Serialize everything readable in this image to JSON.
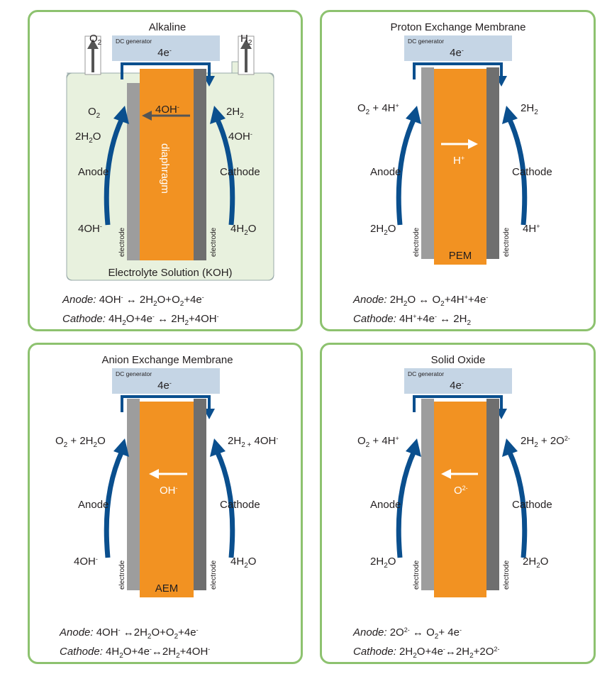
{
  "alkaline": {
    "title": "Alkaline",
    "dc": "DC generator",
    "electrons": "4e",
    "electrons_sup": "-",
    "o2_out": "O",
    "h2_out": "H",
    "anode_o2": "O",
    "anode_2h2o": "2H",
    "anode_label": "Anode",
    "anode_in": "4OH",
    "cathode_2h2": "2H",
    "cathode_4oh": "4OH",
    "cathode_label": "Cathode",
    "cathode_in": "4H",
    "ion": "4OH",
    "membrane": "diaphragm",
    "electrode": "electrode",
    "electrolyte": "Electrolyte Solution (KOH)",
    "eq_anode_label": "Anode:",
    "eq_cathode_label": "Cathode:"
  },
  "pem": {
    "title": "Proton Exchange Membrane",
    "dc": "DC generator",
    "electrons": "4e",
    "anode_top": "O",
    "anode_label": "Anode",
    "anode_in": "2H",
    "cathode_top": "2H",
    "cathode_label": "Cathode",
    "cathode_in": "4H",
    "ion": "H",
    "membrane": "PEM",
    "electrode": "electrode",
    "eq_anode_label": "Anode:",
    "eq_cathode_label": "Cathode:"
  },
  "aem": {
    "title": "Anion Exchange Membrane",
    "dc": "DC generator",
    "electrons": "4e",
    "anode_top": "O",
    "anode_label": "Anode",
    "anode_in": "4OH",
    "cathode_top": "2H",
    "cathode_label": "Cathode",
    "cathode_in": "4H",
    "ion": "OH",
    "membrane": "AEM",
    "electrode": "electrode",
    "eq_anode_label": "Anode:",
    "eq_cathode_label": "Cathode:"
  },
  "soec": {
    "title": "Solid Oxide",
    "dc": "DC generator",
    "electrons": "4e",
    "anode_top": "O",
    "anode_label": "Anode",
    "anode_in": "2H",
    "cathode_top": "2H",
    "cathode_label": "Cathode",
    "cathode_in": "2H",
    "ion": "O",
    "electrode": "electrode",
    "eq_anode_label": "Anode:",
    "eq_cathode_label": "Cathode:"
  },
  "colors": {
    "panel_border": "#8dc26f",
    "dc_box": "#c5d5e5",
    "wire": "#0a4f8e",
    "arrow": "#0a4f8e",
    "membrane": "#f29222",
    "anode_electrode": "#9d9d9d",
    "cathode_electrode": "#6f6f6f",
    "electrolyte": "#e8f1de"
  }
}
